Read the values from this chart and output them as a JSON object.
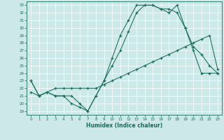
{
  "title": "",
  "xlabel": "Humidex (Indice chaleur)",
  "bg_color": "#cce8e8",
  "line_color": "#1a6b5a",
  "grid_color": "#b0d0d0",
  "xlim": [
    -0.5,
    23.5
  ],
  "ylim": [
    18.5,
    33.5
  ],
  "xticks": [
    0,
    1,
    2,
    3,
    4,
    5,
    6,
    7,
    8,
    9,
    10,
    11,
    12,
    13,
    14,
    15,
    16,
    17,
    18,
    19,
    20,
    21,
    22,
    23
  ],
  "yticks": [
    19,
    20,
    21,
    22,
    23,
    24,
    25,
    26,
    27,
    28,
    29,
    30,
    31,
    32,
    33
  ],
  "line1_x": [
    0,
    1,
    2,
    3,
    4,
    5,
    6,
    7,
    8,
    9,
    10,
    11,
    12,
    13,
    14,
    15,
    16,
    17,
    18,
    19,
    20,
    21,
    22,
    23
  ],
  "line1_y": [
    23,
    21,
    21.5,
    21,
    21,
    20,
    19.5,
    19,
    21,
    23,
    26,
    29,
    31,
    33,
    33,
    33,
    32.5,
    32.5,
    32,
    30,
    27,
    24,
    24,
    24
  ],
  "line2_x": [
    0,
    1,
    2,
    3,
    4,
    5,
    6,
    7,
    8,
    9,
    10,
    11,
    12,
    13,
    14,
    15,
    16,
    17,
    18,
    19,
    20,
    21,
    22,
    23
  ],
  "line2_y": [
    23,
    21,
    21.5,
    21,
    21,
    21,
    20,
    19,
    21,
    23,
    25,
    27,
    29.5,
    32,
    33,
    33,
    32.5,
    32,
    33,
    30,
    27.5,
    26.5,
    25,
    24
  ],
  "line3_x": [
    0,
    1,
    2,
    3,
    4,
    5,
    6,
    7,
    8,
    9,
    10,
    11,
    12,
    13,
    14,
    15,
    16,
    17,
    18,
    19,
    20,
    21,
    22,
    23
  ],
  "line3_y": [
    21.5,
    21,
    21.5,
    22,
    22,
    22,
    22,
    22,
    22,
    22.5,
    23,
    23.5,
    24,
    24.5,
    25,
    25.5,
    26,
    26.5,
    27,
    27.5,
    28,
    28.5,
    29,
    24.5
  ]
}
